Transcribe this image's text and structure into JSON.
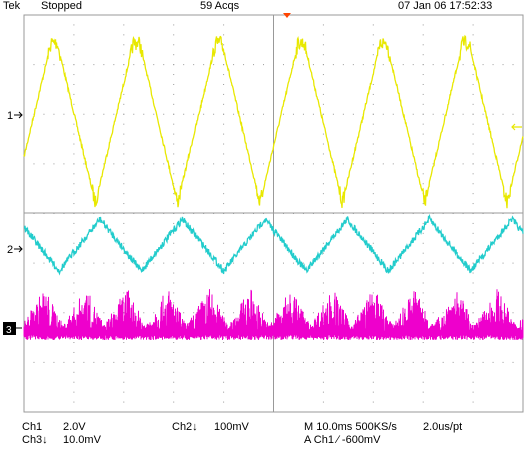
{
  "header": {
    "brand": "Tek",
    "run_state": "Stopped",
    "acquisitions": "59 Acqs",
    "timestamp": "07 Jan 06 17:52:33"
  },
  "channels": [
    {
      "id": "1",
      "marker": "1",
      "color": "#e8e800",
      "scale": "2.0V",
      "waveform": "triangle"
    },
    {
      "id": "2",
      "marker": "2",
      "color": "#22cccc",
      "scale": "100mV",
      "waveform": "triangle"
    },
    {
      "id": "3",
      "marker": "3",
      "color": "#ee00cc",
      "scale": "10.0mV",
      "waveform": "ripple"
    }
  ],
  "footer": {
    "ch1_label": "Ch1",
    "ch1_scale": "2.0V",
    "ch2_label": "Ch2↓",
    "ch2_scale": "100mV",
    "ch3_label": "Ch3↓",
    "ch3_scale": "10.0mV",
    "timebase": "M 10.0ms 500KS/s",
    "sample_interval": "2.0us/pt",
    "trigger": "A  Ch1  ∕  -600mV"
  },
  "display": {
    "grid_color": "#999999",
    "background": "#ffffff",
    "trigger_marker_color": "#ff4400",
    "waveform_period_ms": 16.5
  }
}
